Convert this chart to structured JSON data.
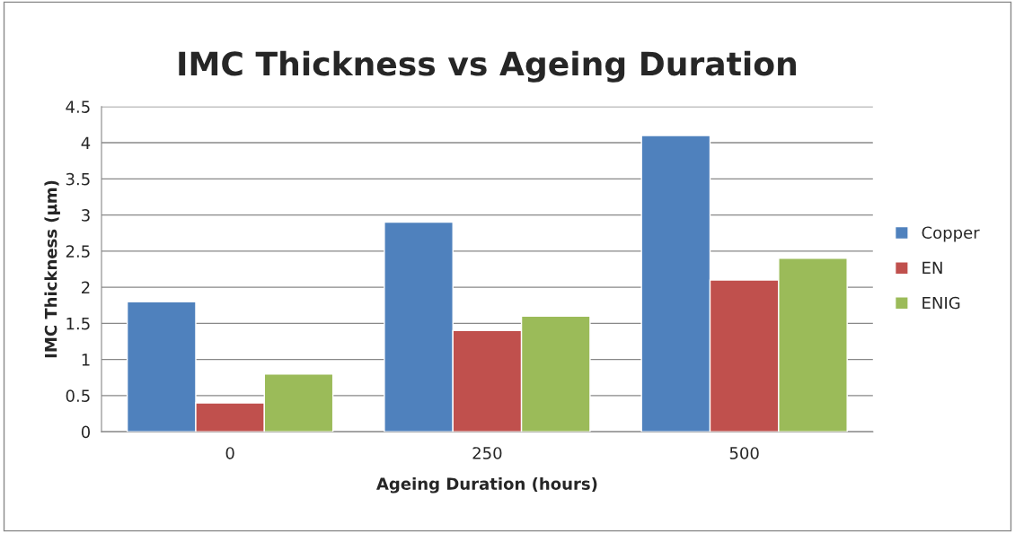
{
  "chart_data": {
    "type": "bar",
    "title": "IMC Thickness vs Ageing Duration",
    "xlabel": "Ageing Duration (hours)",
    "ylabel": "IMC Thickness (μm)",
    "categories": [
      "0",
      "250",
      "500"
    ],
    "series": [
      {
        "name": "Copper",
        "color": "#4f81bd",
        "values": [
          1.8,
          2.9,
          4.1
        ]
      },
      {
        "name": "EN",
        "color": "#c0504d",
        "values": [
          0.4,
          1.4,
          2.1
        ]
      },
      {
        "name": "ENIG",
        "color": "#9bbb59",
        "values": [
          0.8,
          1.6,
          2.4
        ]
      }
    ],
    "ylim": [
      0,
      4.5
    ],
    "yticks": [
      0,
      0.5,
      1,
      1.5,
      2,
      2.5,
      3,
      3.5,
      4,
      4.5
    ],
    "grid": "y",
    "legend": "right"
  }
}
